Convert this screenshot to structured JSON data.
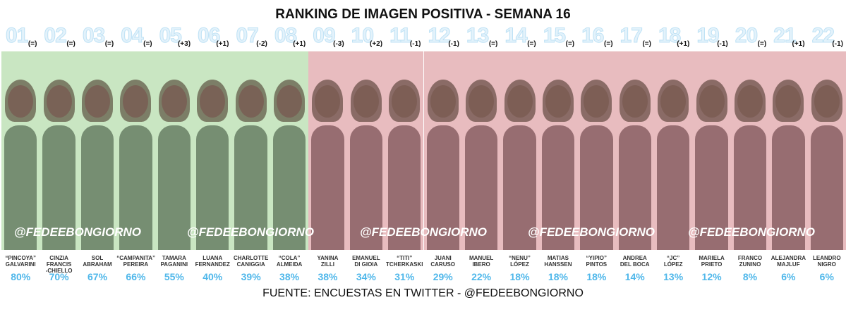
{
  "title": "RANKING DE IMAGEN POSITIVA - SEMANA 16",
  "footer": "FUENTE: ENCUESTAS EN TWITTER - @FEDEEBONGIORNO",
  "watermark": "@FEDEEBONGIORNO",
  "entries": [
    {
      "rank": "01",
      "change": "(=)",
      "name": [
        "“PINCOYA”",
        "GALVARINI"
      ],
      "percent": "80%"
    },
    {
      "rank": "02",
      "change": "(=)",
      "name": [
        "CINZIA",
        "FRANCIS",
        "-CHIELLO"
      ],
      "percent": "70%"
    },
    {
      "rank": "03",
      "change": "(=)",
      "name": [
        "SOL",
        "ABRAHAM"
      ],
      "percent": "67%"
    },
    {
      "rank": "04",
      "change": "(=)",
      "name": [
        "“CAMPANITA”",
        "PEREIRA"
      ],
      "percent": "66%"
    },
    {
      "rank": "05",
      "change": "(+3)",
      "name": [
        "TAMARA",
        "PAGANINI"
      ],
      "percent": "55%"
    },
    {
      "rank": "06",
      "change": "(+1)",
      "name": [
        "LUANA",
        "FERNANDEZ"
      ],
      "percent": "40%"
    },
    {
      "rank": "07",
      "change": "(-2)",
      "name": [
        "CHARLOTTE",
        "CANIGGIA"
      ],
      "percent": "39%"
    },
    {
      "rank": "08",
      "change": "(+1)",
      "name": [
        "“COLA”",
        "ALMEIDA"
      ],
      "percent": "38%"
    },
    {
      "rank": "09",
      "change": "(-3)",
      "name": [
        "YANINA",
        "ZILLI"
      ],
      "percent": "38%"
    },
    {
      "rank": "10",
      "change": "(+2)",
      "name": [
        "EMANUEL",
        "DI GIOIA"
      ],
      "percent": "34%"
    },
    {
      "rank": "11",
      "change": "(-1)",
      "name": [
        "“TITI”",
        "TCHERKASKI"
      ],
      "percent": "31%"
    },
    {
      "rank": "12",
      "change": "(-1)",
      "name": [
        "JUANI",
        "CARUSO"
      ],
      "percent": "29%"
    },
    {
      "rank": "13",
      "change": "(=)",
      "name": [
        "MANUEL",
        "IBERO"
      ],
      "percent": "22%"
    },
    {
      "rank": "14",
      "change": "(=)",
      "name": [
        "“NENU”",
        "LÓPEZ"
      ],
      "percent": "18%"
    },
    {
      "rank": "15",
      "change": "(=)",
      "name": [
        "MATIAS",
        "HANSSEN"
      ],
      "percent": "18%"
    },
    {
      "rank": "16",
      "change": "(=)",
      "name": [
        "“YIPIO”",
        "PINTOS"
      ],
      "percent": "18%"
    },
    {
      "rank": "17",
      "change": "(=)",
      "name": [
        "ANDREA",
        "DEL BOCA"
      ],
      "percent": "14%"
    },
    {
      "rank": "18",
      "change": "(+1)",
      "name": [
        "“JC”",
        "LÓPEZ"
      ],
      "percent": "13%"
    },
    {
      "rank": "19",
      "change": "(-1)",
      "name": [
        "MARIELA",
        "PRIETO"
      ],
      "percent": "12%"
    },
    {
      "rank": "20",
      "change": "(=)",
      "name": [
        "FRANCO",
        "ZUNINO"
      ],
      "percent": "8%"
    },
    {
      "rank": "21",
      "change": "(+1)",
      "name": [
        "ALEJANDRA",
        "MAJLUF"
      ],
      "percent": "6%"
    },
    {
      "rank": "22",
      "change": "(-1)",
      "name": [
        "LEANDRO",
        "NIGRO"
      ],
      "percent": "6%"
    }
  ]
}
